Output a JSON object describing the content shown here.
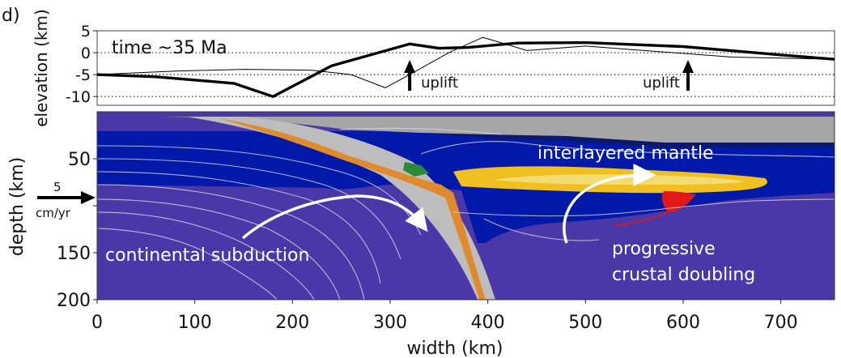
{
  "chart_data": [
    {
      "type": "line",
      "panel_label": "d)",
      "annotation": "time ~35 Ma",
      "ylabel": "elevation (km)",
      "yticks": [
        "5",
        "0",
        "-5",
        "-10"
      ],
      "ylim": [
        -12,
        5
      ],
      "xlim": [
        0,
        755
      ],
      "reference_lines": [
        0,
        -5,
        -10
      ],
      "series": [
        {
          "style": "thick",
          "x": [
            0,
            60,
            140,
            180,
            240,
            320,
            350,
            380,
            430,
            500,
            600,
            700,
            755
          ],
          "y": [
            -5,
            -5.5,
            -7,
            -10,
            -3,
            2,
            1,
            1.2,
            2.2,
            2.3,
            1.4,
            -0.5,
            -1.5
          ]
        },
        {
          "style": "thin",
          "x": [
            0,
            80,
            150,
            220,
            260,
            295,
            320,
            360,
            395,
            410,
            440,
            500,
            560,
            650,
            755
          ],
          "y": [
            -5,
            -4.2,
            -3.8,
            -4,
            -5,
            -8,
            -5,
            0,
            3.5,
            2.5,
            0.5,
            1.5,
            0.5,
            -1,
            -1.5
          ]
        }
      ],
      "arrows": [
        {
          "x": 320,
          "label": "uplift"
        },
        {
          "x": 605,
          "label": "uplift"
        }
      ]
    },
    {
      "type": "heatmap",
      "xlabel": "width (km)",
      "ylabel": "depth (km)",
      "xticks": [
        "0",
        "100",
        "200",
        "300",
        "400",
        "500",
        "600",
        "700"
      ],
      "yticks": [
        "50",
        "100",
        "150",
        "200"
      ],
      "xlim": [
        0,
        755
      ],
      "ylim": [
        200,
        0
      ],
      "annotations": [
        "interlayered mantle",
        "continental subduction",
        "progressive",
        "crustal doubling"
      ],
      "velocity_arrow": {
        "value": "5",
        "unit": "cm/yr"
      },
      "colors": {
        "mantle": "#0019a8",
        "deep_mantle": "#4a37a8",
        "slab": "#bdbdbd",
        "felsic": "#f0c020",
        "sediment": "#e08a2c",
        "melt": "#e01818",
        "upper_crust": "#9c9c9c"
      }
    }
  ]
}
